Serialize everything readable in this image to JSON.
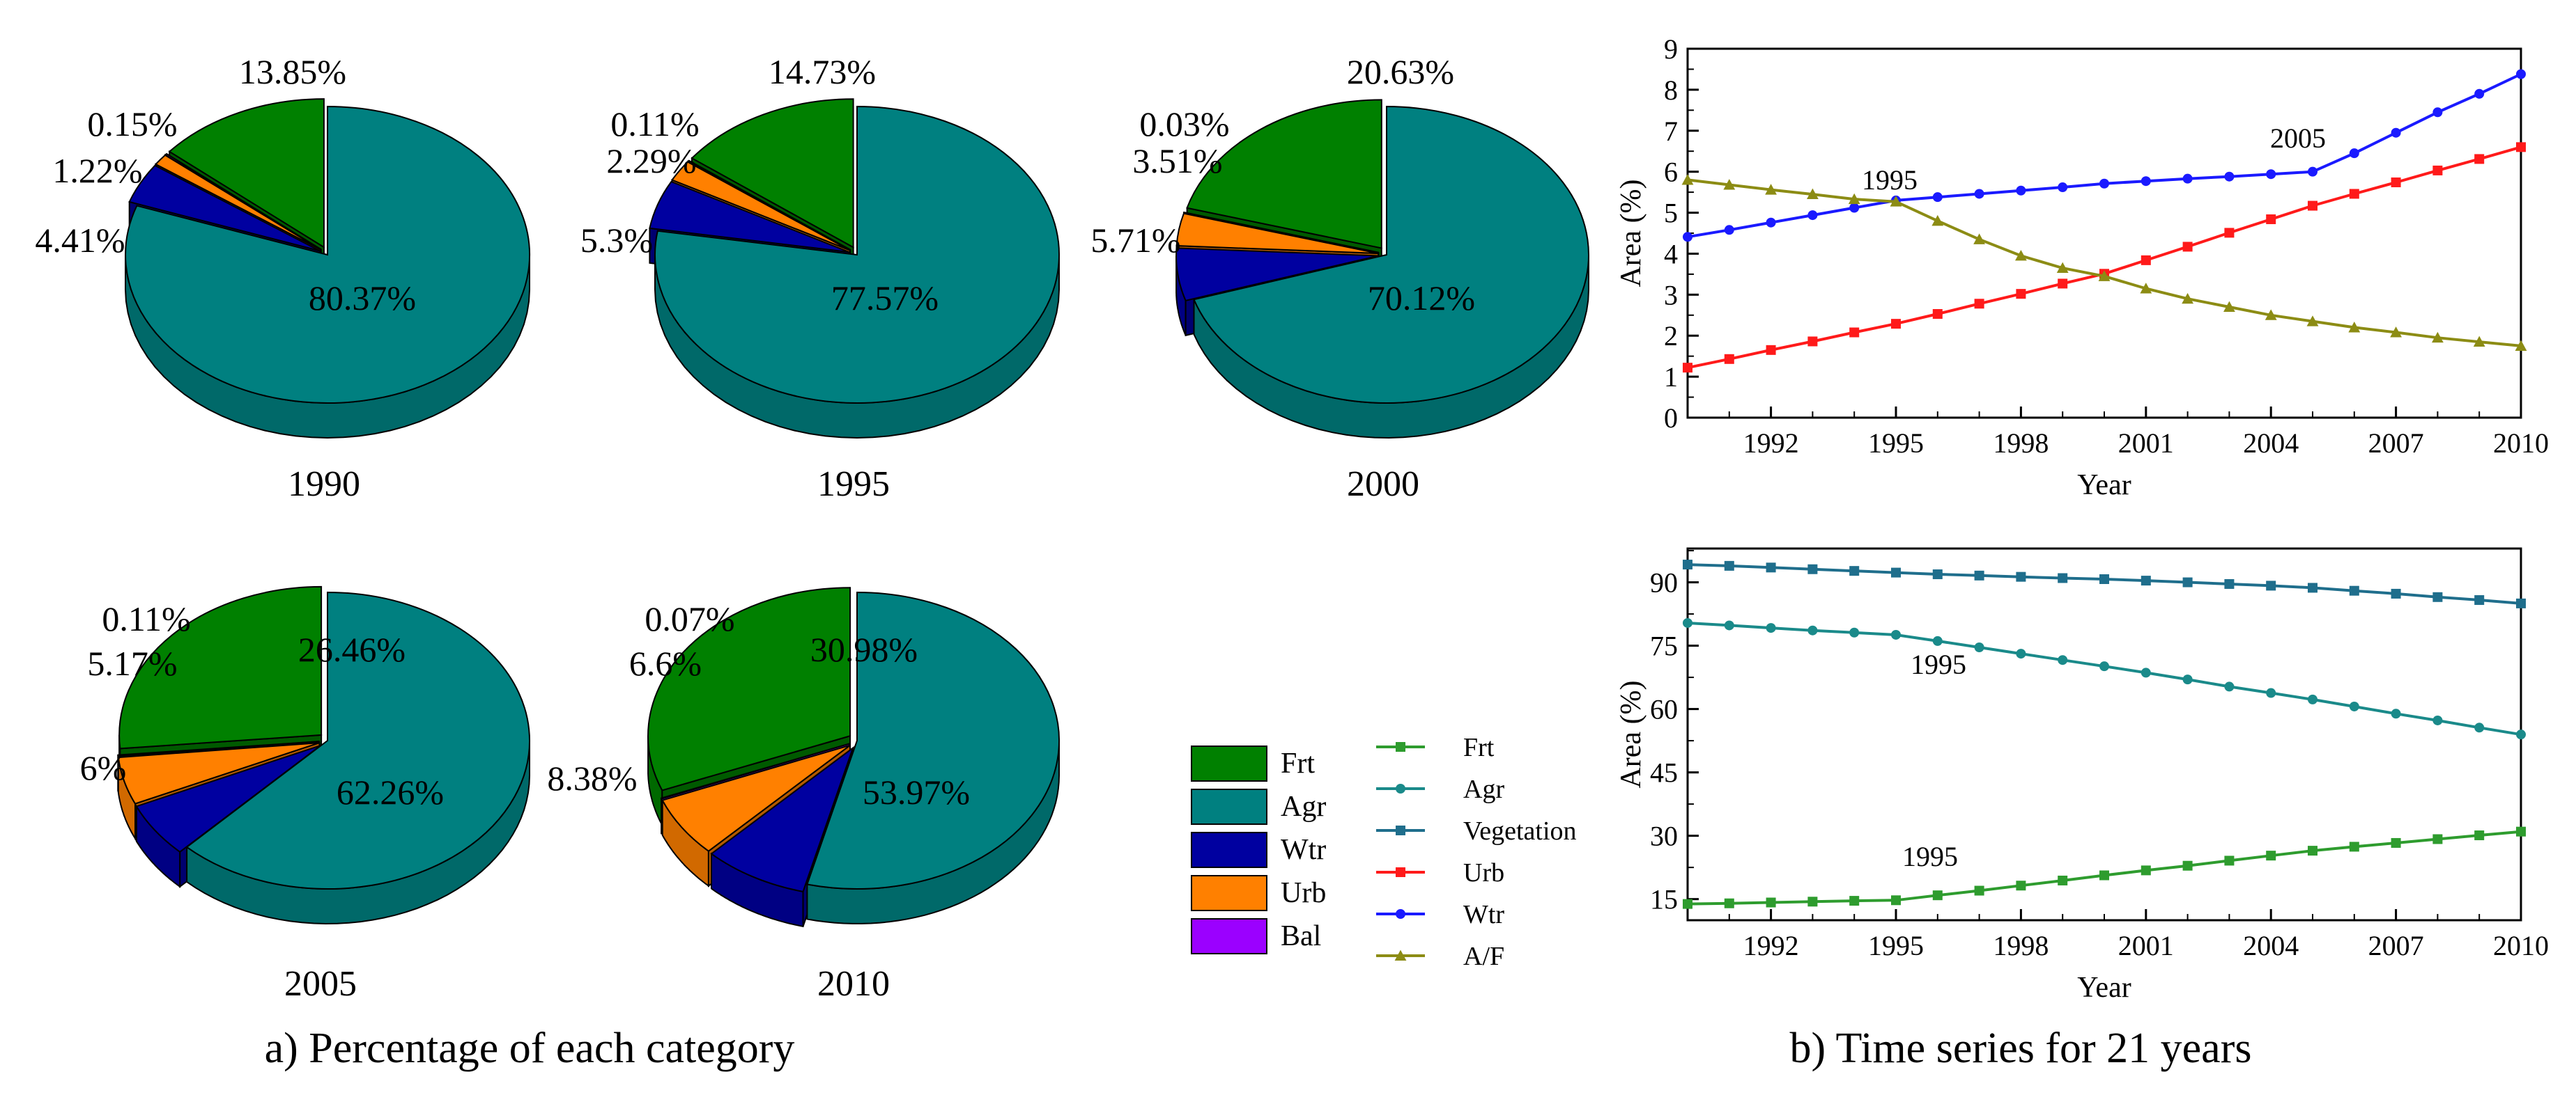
{
  "colors": {
    "frt": "#008000",
    "frt_line": "#2e9c2e",
    "agr": "#008080",
    "agr_line": "#1a8a8a",
    "veg_line": "#1f6e8c",
    "wtr": "#0000a0",
    "wtr_line": "#1a1aff",
    "urb": "#ff8000",
    "urb_line": "#ff1a1a",
    "bal": "#9b00ff",
    "af_line": "#8c8c14"
  },
  "panel_a": {
    "caption": "a) Percentage of each category"
  },
  "panel_b": {
    "caption": "b) Time series for 21 years"
  },
  "pie_legend": [
    {
      "label": "Frt",
      "color_key": "frt"
    },
    {
      "label": "Agr",
      "color_key": "agr"
    },
    {
      "label": "Wtr",
      "color_key": "wtr"
    },
    {
      "label": "Urb",
      "color_key": "urb"
    },
    {
      "label": "Bal",
      "color_key": "bal"
    }
  ],
  "line_legend": [
    {
      "label": "Frt",
      "color_key": "frt_line",
      "marker": "square"
    },
    {
      "label": "Agr",
      "color_key": "agr_line",
      "marker": "circle"
    },
    {
      "label": "Vegetation",
      "color_key": "veg_line",
      "marker": "square"
    },
    {
      "label": "Urb",
      "color_key": "urb_line",
      "marker": "square"
    },
    {
      "label": "Wtr",
      "color_key": "wtr_line",
      "marker": "circle"
    },
    {
      "label": "A/F",
      "color_key": "af_line",
      "marker": "triangle"
    }
  ],
  "chart_data": [
    {
      "type": "pie",
      "title": "1990",
      "categories": [
        "Frt",
        "Agr",
        "Wtr",
        "Urb",
        "Bal"
      ],
      "values": [
        13.85,
        80.37,
        4.41,
        1.22,
        0.15
      ],
      "labels": [
        "13.85%",
        "80.37%",
        "4.41%",
        "1.22%",
        "0.15%"
      ]
    },
    {
      "type": "pie",
      "title": "1995",
      "categories": [
        "Frt",
        "Agr",
        "Wtr",
        "Urb",
        "Bal"
      ],
      "values": [
        14.73,
        77.57,
        5.3,
        2.29,
        0.11
      ],
      "labels": [
        "14.73%",
        "77.57%",
        "5.3%",
        "2.29%",
        "0.11%"
      ]
    },
    {
      "type": "pie",
      "title": "2000",
      "categories": [
        "Frt",
        "Agr",
        "Wtr",
        "Urb",
        "Bal"
      ],
      "values": [
        20.63,
        70.12,
        5.71,
        3.51,
        0.03
      ],
      "labels": [
        "20.63%",
        "70.12%",
        "5.71%",
        "3.51%",
        "0.03%"
      ]
    },
    {
      "type": "pie",
      "title": "2005",
      "categories": [
        "Frt",
        "Agr",
        "Wtr",
        "Urb",
        "Bal"
      ],
      "values": [
        26.46,
        62.26,
        6,
        5.17,
        0.11
      ],
      "labels": [
        "26.46%",
        "62.26%",
        "6%",
        "5.17%",
        "0.11%"
      ]
    },
    {
      "type": "pie",
      "title": "2010",
      "categories": [
        "Frt",
        "Agr",
        "Wtr",
        "Urb",
        "Bal"
      ],
      "values": [
        30.98,
        53.97,
        8.38,
        6.6,
        0.07
      ],
      "labels": [
        "30.98%",
        "53.97%",
        "8.38%",
        "6.6%",
        "0.07%"
      ]
    },
    {
      "type": "line",
      "xlabel": "Year",
      "ylabel": "Area (%)",
      "xlim": [
        1990,
        2010
      ],
      "ylim": [
        0,
        9
      ],
      "xticks": [
        1992,
        1995,
        1998,
        2001,
        2004,
        2007,
        2010
      ],
      "yticks": [
        0,
        1,
        2,
        3,
        4,
        5,
        6,
        7,
        8,
        9
      ],
      "x": [
        1990,
        1991,
        1992,
        1993,
        1994,
        1995,
        1996,
        1997,
        1998,
        1999,
        2000,
        2001,
        2002,
        2003,
        2004,
        2005,
        2006,
        2007,
        2008,
        2009,
        2010
      ],
      "series": [
        {
          "name": "Wtr",
          "color_key": "wtr_line",
          "marker": "circle",
          "values": [
            4.41,
            4.58,
            4.76,
            4.94,
            5.12,
            5.3,
            5.38,
            5.46,
            5.54,
            5.62,
            5.71,
            5.77,
            5.83,
            5.88,
            5.94,
            6.0,
            6.45,
            6.95,
            7.45,
            7.9,
            8.38
          ]
        },
        {
          "name": "Urb",
          "color_key": "urb_line",
          "marker": "square",
          "values": [
            1.22,
            1.43,
            1.65,
            1.86,
            2.08,
            2.29,
            2.53,
            2.78,
            3.02,
            3.27,
            3.51,
            3.84,
            4.17,
            4.51,
            4.84,
            5.17,
            5.46,
            5.74,
            6.03,
            6.31,
            6.6
          ]
        },
        {
          "name": "A/F",
          "color_key": "af_line",
          "marker": "triangle",
          "values": [
            5.8,
            5.68,
            5.56,
            5.45,
            5.33,
            5.27,
            4.8,
            4.35,
            3.95,
            3.65,
            3.45,
            3.15,
            2.9,
            2.7,
            2.5,
            2.35,
            2.2,
            2.08,
            1.95,
            1.85,
            1.75
          ]
        }
      ],
      "annotations": [
        "1995",
        "2005"
      ]
    },
    {
      "type": "line",
      "xlabel": "Year",
      "ylabel": "Area (%)",
      "xlim": [
        1990,
        2010
      ],
      "ylim": [
        10,
        98
      ],
      "xticks": [
        1992,
        1995,
        1998,
        2001,
        2004,
        2007,
        2010
      ],
      "yticks": [
        15,
        30,
        45,
        60,
        75,
        90
      ],
      "x": [
        1990,
        1991,
        1992,
        1993,
        1994,
        1995,
        1996,
        1997,
        1998,
        1999,
        2000,
        2001,
        2002,
        2003,
        2004,
        2005,
        2006,
        2007,
        2008,
        2009,
        2010
      ],
      "series": [
        {
          "name": "Vegetation",
          "color_key": "veg_line",
          "marker": "square",
          "values": [
            94.2,
            93.9,
            93.5,
            93.1,
            92.7,
            92.3,
            91.9,
            91.6,
            91.3,
            91.0,
            90.75,
            90.4,
            90.0,
            89.6,
            89.2,
            88.7,
            88.0,
            87.3,
            86.5,
            85.8,
            85.0
          ]
        },
        {
          "name": "Agr",
          "color_key": "agr_line",
          "marker": "circle",
          "values": [
            80.37,
            79.8,
            79.2,
            78.6,
            78.1,
            77.57,
            76.1,
            74.6,
            73.1,
            71.6,
            70.12,
            68.6,
            67.0,
            65.3,
            63.8,
            62.26,
            60.6,
            58.9,
            57.3,
            55.6,
            53.97
          ]
        },
        {
          "name": "Frt",
          "color_key": "frt_line",
          "marker": "square",
          "values": [
            13.85,
            14.0,
            14.2,
            14.4,
            14.6,
            14.73,
            15.9,
            17.0,
            18.2,
            19.4,
            20.63,
            21.8,
            22.9,
            24.1,
            25.3,
            26.46,
            27.4,
            28.3,
            29.2,
            30.1,
            30.98
          ]
        }
      ],
      "annotations": [
        "1995",
        "1995"
      ]
    }
  ]
}
